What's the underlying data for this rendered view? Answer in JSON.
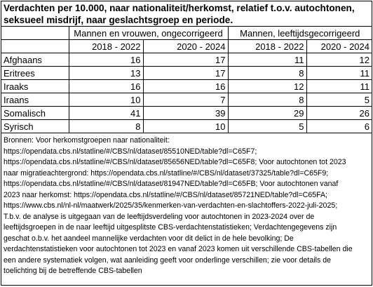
{
  "title": [
    "Verdachten per 10.000, naar nationaliteit/herkomst, relatief t.o.v. autochtonen,",
    "seksueel misdrijf, naar geslachtsgroep en periode."
  ],
  "group_headers": [
    "Mannen en vrouwen, ongecorrigeerd",
    "Mannen, leeftijdsgecorrigeerd"
  ],
  "periods": [
    "2018 - 2022",
    "2020 - 2024",
    "2018 - 2022",
    "2020 - 2024"
  ],
  "rows": [
    {
      "label": "Afghaans",
      "values": [
        "16",
        "17",
        "11",
        "12"
      ]
    },
    {
      "label": "Eritrees",
      "values": [
        "13",
        "17",
        "8",
        "11"
      ]
    },
    {
      "label": "Iraaks",
      "values": [
        "16",
        "16",
        "12",
        "11"
      ]
    },
    {
      "label": "Iraans",
      "values": [
        "10",
        "7",
        "8",
        "5"
      ]
    },
    {
      "label": "Somalisch",
      "values": [
        "41",
        "39",
        "29",
        "26"
      ]
    },
    {
      "label": "Syrisch",
      "values": [
        "8",
        "10",
        "5",
        "6"
      ]
    }
  ],
  "notes": [
    "Bronnen: Voor herkomstgroepen naar nationaliteit:",
    "https://opendata.cbs.nl/statline/#/CBS/nl/dataset/85510NED/table?dl=C65F7;",
    "https://opendata.cbs.nl/statline/#/CBS/nl/dataset/85656NED/table?dl=C65F8; Voor autochtonen tot 2023",
    "naar migratieachtergrond: https://opendata.cbs.nl/statline/#/CBS/nl/dataset/37325/table?dl=C65F9;",
    "https://opendata.cbs.nl/statline/#/CBS/nl/dataset/81947NED/table?dl=C65FB; Voor autochtonen vanaf",
    "2023 naar herkomst: https://opendata.cbs.nl/statline/#/CBS/nl/dataset/85721NED/table?dl=C65FA;",
    "https://www.cbs.nl/nl-nl/maatwerk/2025/35/kenmerken-van-verdachten-en-slachtoffers-2022-juli-2025;",
    "T.b.v. de analyse is uitgegaan van de leeftijdsverdeling voor autochtonen in 2023-2024 over de",
    "leeftijdsgroepen in de naar leeftijd uitgesplitste CBS-verdachtenstatistieken; Verdachtengegevens zijn",
    "geschat o.b.v. het aandeel mannelijke verdachten voor dit delict in de hele bevolking; De",
    "verdachtenstatistieken voor autochtonen tot 2023 en vanaf 2023 komen uit verschillende CBS-tabellen die",
    "een andere systematiek volgen, wat aanleiding geeft voor onderlinge verschillen; zie voor details de",
    "toelichting bij de betreffende CBS-tabellen"
  ]
}
